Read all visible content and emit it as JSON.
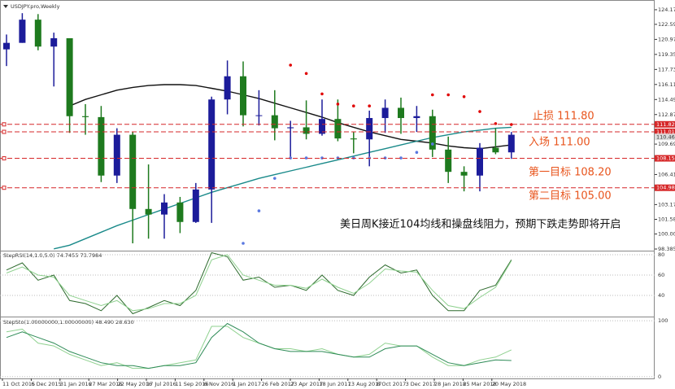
{
  "chart_data": [
    {
      "type": "candlestick",
      "title": "USDJPY.pro,Weekly",
      "ylim": [
        98.21,
        124.78
      ],
      "yticks": [
        {
          "value": 124.17,
          "label": "124.170"
        },
        {
          "value": 122.595,
          "label": "122.595"
        },
        {
          "value": 120.975,
          "label": "120.975"
        },
        {
          "value": 119.355,
          "label": "119.355"
        },
        {
          "value": 117.735,
          "label": "117.735"
        },
        {
          "value": 116.115,
          "label": "116.115"
        },
        {
          "value": 114.495,
          "label": "114.495"
        },
        {
          "value": 112.875,
          "label": "112.875"
        },
        {
          "value": 109.69,
          "label": "109.690"
        },
        {
          "value": 106.415,
          "label": "106.415"
        },
        {
          "value": 103.175,
          "label": "103.175"
        },
        {
          "value": 101.585,
          "label": "101.585"
        },
        {
          "value": 100.005,
          "label": "100.005"
        },
        {
          "value": 98.385,
          "label": "98.385"
        }
      ],
      "up_color": "#1c1c9a",
      "down_color": "#1e7a1e",
      "open": [
        119.9,
        120.6,
        123.1,
        120.2,
        121.1,
        112.7,
        112.6,
        106.3,
        110.7,
        102.7,
        102.1,
        103.4,
        101.3,
        104.8,
        114.5,
        117.0,
        112.8,
        112.8,
        111.4,
        111.5,
        110.8,
        112.4,
        110.3,
        110.2,
        112.5,
        113.6,
        112.5,
        112.7,
        109.1,
        106.7,
        106.3,
        109.3,
        108.8
      ],
      "high": [
        121.5,
        123.8,
        123.7,
        121.7,
        121.0,
        114.0,
        113.8,
        111.4,
        111.0,
        107.5,
        104.3,
        104.0,
        105.5,
        114.8,
        118.7,
        118.6,
        115.5,
        115.5,
        112.2,
        114.4,
        114.5,
        114.5,
        111.0,
        113.3,
        114.5,
        114.7,
        113.8,
        113.4,
        110.5,
        107.3,
        109.8,
        111.4,
        111.0
      ],
      "low": [
        118.1,
        120.6,
        119.8,
        115.9,
        110.9,
        110.7,
        105.6,
        105.5,
        99.0,
        99.5,
        99.5,
        100.1,
        101.2,
        101.2,
        112.9,
        111.6,
        111.7,
        110.1,
        108.1,
        110.2,
        110.6,
        110.0,
        108.7,
        107.3,
        110.9,
        110.8,
        111.0,
        108.3,
        105.5,
        104.6,
        104.6,
        108.6,
        108.1
      ],
      "close": [
        120.6,
        123.1,
        120.2,
        121.1,
        112.7,
        112.6,
        106.3,
        110.7,
        102.7,
        102.1,
        103.4,
        101.3,
        104.8,
        114.5,
        117.0,
        112.8,
        112.8,
        111.4,
        111.5,
        110.8,
        112.4,
        110.3,
        110.2,
        112.5,
        113.6,
        112.5,
        112.7,
        109.1,
        106.7,
        106.3,
        109.3,
        108.8,
        110.7
      ],
      "lines": [
        {
          "color": "#111111",
          "values": [
            null,
            null,
            null,
            null,
            113.8,
            114.5,
            115.0,
            115.5,
            115.8,
            116.0,
            116.1,
            116.1,
            116.0,
            115.7,
            115.4,
            115.0,
            114.6,
            114.1,
            113.6,
            113.1,
            112.6,
            112.0,
            111.5,
            111.0,
            110.6,
            110.2,
            110.0,
            109.8,
            109.5,
            109.3,
            109.2,
            109.4,
            109.6
          ]
        },
        {
          "color": "#1a8a8a",
          "values": [
            null,
            null,
            null,
            98.4,
            98.8,
            99.5,
            100.2,
            100.9,
            101.5,
            102.1,
            102.7,
            103.3,
            103.9,
            104.5,
            105.0,
            105.5,
            106.0,
            106.4,
            106.8,
            107.2,
            107.6,
            108.0,
            108.4,
            108.8,
            109.2,
            109.6,
            110.0,
            110.4,
            110.7,
            111.0,
            111.2,
            111.4,
            111.5
          ]
        }
      ],
      "dots": [
        {
          "color": "#e00000",
          "values": [
            null,
            null,
            null,
            null,
            null,
            null,
            null,
            null,
            null,
            null,
            null,
            null,
            null,
            null,
            null,
            null,
            null,
            null,
            118.2,
            117.3,
            115.1,
            114.0,
            113.8,
            113.8,
            null,
            null,
            null,
            115.0,
            115.0,
            114.8,
            113.2,
            111.9,
            111.8
          ]
        },
        {
          "color": "#5a78e0",
          "values": [
            null,
            null,
            null,
            null,
            null,
            null,
            null,
            null,
            null,
            null,
            null,
            null,
            null,
            null,
            null,
            99.0,
            102.5,
            106.0,
            108.2,
            108.2,
            108.2,
            108.2,
            108.2,
            108.2,
            108.2,
            108.2,
            108.8,
            109.7,
            null,
            null,
            null,
            null,
            null
          ]
        }
      ],
      "levels": [
        {
          "value": 111.82,
          "label": "111.820"
        },
        {
          "value": 111.011,
          "label": "111.011"
        },
        {
          "value": 108.159,
          "label": "108.159"
        },
        {
          "value": 104.987,
          "label": "104.987"
        }
      ],
      "level_color": "#d62728",
      "price_tag": {
        "value": 110.463,
        "label": "110.463"
      },
      "annotations": [
        "止损  111.80",
        "入场 111.00",
        "第一目标 108.20",
        "第二目标 105.00"
      ],
      "note": "美日周K接近104均线和操盘线阻力，预期下跌走势即将开启",
      "x_labels": [
        "11 Oct 2015",
        "6 Dec 2015",
        "31 Jan 2016",
        "27 Mar 2016",
        "22 May 2016",
        "17 Jul 2016",
        "11 Sep 2016",
        "6 Nov 2016",
        "1 Jan 2017",
        "26 Feb 2017",
        "23 Apr 2017",
        "18 Jun 2017",
        "13 Aug 2017",
        "8 Oct 2017",
        "3 Dec 2017",
        "28 Jan 2018",
        "25 Mar 2018",
        "20 May 2018"
      ]
    },
    {
      "type": "line",
      "title": "StepRSI(14,1.0,5.0) 74.7455 73.7984",
      "ylim": [
        21.6,
        82.4
      ],
      "yticks": [
        80,
        60,
        40
      ],
      "series": [
        {
          "color": "#2e6b2e",
          "values": [
            65,
            72,
            55,
            60,
            35,
            32,
            25,
            40,
            22,
            28,
            35,
            30,
            45,
            82,
            78,
            55,
            58,
            48,
            50,
            45,
            60,
            45,
            40,
            58,
            70,
            62,
            65,
            40,
            25,
            25,
            45,
            50,
            75
          ]
        },
        {
          "color": "#8fd18f",
          "values": [
            62,
            68,
            60,
            58,
            40,
            35,
            30,
            35,
            25,
            27,
            32,
            32,
            40,
            75,
            80,
            60,
            55,
            50,
            50,
            47,
            56,
            48,
            42,
            52,
            66,
            64,
            63,
            45,
            30,
            27,
            38,
            48,
            74
          ]
        }
      ]
    },
    {
      "type": "line",
      "title": "StepSto(1.00000000,1.00000000) 48.490 28.630",
      "ylim": [
        -3,
        103
      ],
      "yticks": [
        100,
        0
      ],
      "series": [
        {
          "color": "#8fd18f",
          "values": [
            80,
            85,
            60,
            55,
            40,
            30,
            20,
            25,
            15,
            15,
            20,
            25,
            30,
            90,
            90,
            70,
            60,
            50,
            50,
            45,
            50,
            40,
            35,
            40,
            60,
            55,
            55,
            35,
            20,
            20,
            30,
            35,
            48
          ]
        },
        {
          "color": "#2e8b57",
          "values": [
            70,
            80,
            70,
            60,
            45,
            35,
            25,
            20,
            20,
            15,
            20,
            20,
            25,
            70,
            95,
            80,
            60,
            50,
            45,
            45,
            45,
            40,
            35,
            35,
            50,
            55,
            55,
            40,
            25,
            20,
            25,
            30,
            29
          ]
        }
      ]
    }
  ]
}
